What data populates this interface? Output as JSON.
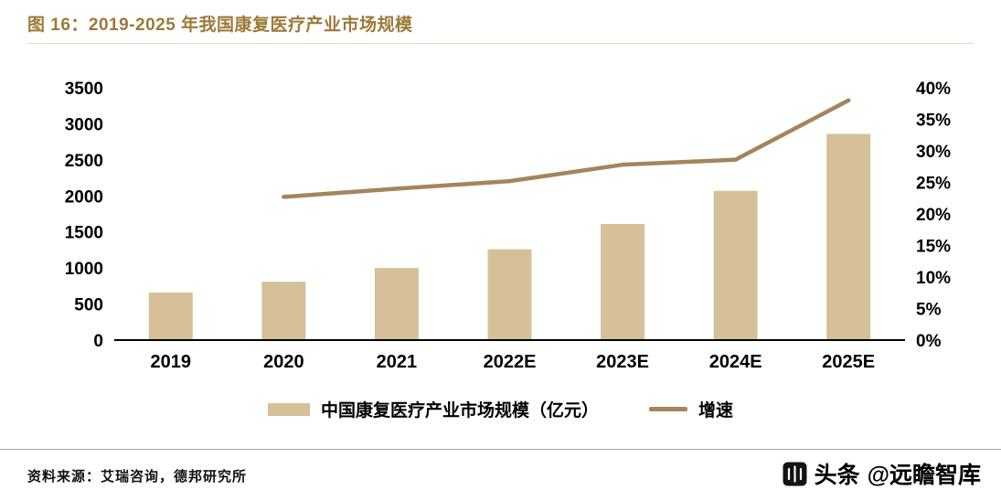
{
  "figure": {
    "title": "图 16：2019-2025 年我国康复医疗产业市场规模",
    "source": "资料来源：艾瑞咨询，德邦研究所",
    "watermark": {
      "platform": "头条",
      "account": "@远瞻智库",
      "icon": "toutiao-logo-icon"
    }
  },
  "colors": {
    "title": "#9c7a3a",
    "bar": "#d5c098",
    "line": "#a5845c",
    "axis_text": "#000000",
    "axis_line": "#000000"
  },
  "chart_data": {
    "type": "bar",
    "subtype": "bar+line combo, dual axis",
    "title": "2019-2025 年我国康复医疗产业市场规模",
    "categories": [
      "2019",
      "2020",
      "2021",
      "2022E",
      "2023E",
      "2024E",
      "2025E"
    ],
    "series": [
      {
        "name": "中国康复医疗产业市场规模（亿元）",
        "type": "bar",
        "axis": "left",
        "color": "#d5c098",
        "values": [
          660,
          810,
          1000,
          1260,
          1610,
          2070,
          2860
        ]
      },
      {
        "name": "增速",
        "type": "line",
        "axis": "right",
        "color": "#a5845c",
        "values": [
          null,
          22.7,
          24.0,
          25.2,
          27.8,
          28.6,
          38.0
        ]
      }
    ],
    "left_axis": {
      "label": "",
      "min": 0,
      "max": 3500,
      "step": 500,
      "ticks": [
        "0",
        "500",
        "1000",
        "1500",
        "2000",
        "2500",
        "3000",
        "3500"
      ]
    },
    "right_axis": {
      "label": "",
      "min": 0,
      "max": 40,
      "step": 5,
      "ticks": [
        "0%",
        "5%",
        "10%",
        "15%",
        "20%",
        "25%",
        "30%",
        "35%",
        "40%"
      ]
    },
    "grid": false,
    "legend_position": "bottom"
  }
}
